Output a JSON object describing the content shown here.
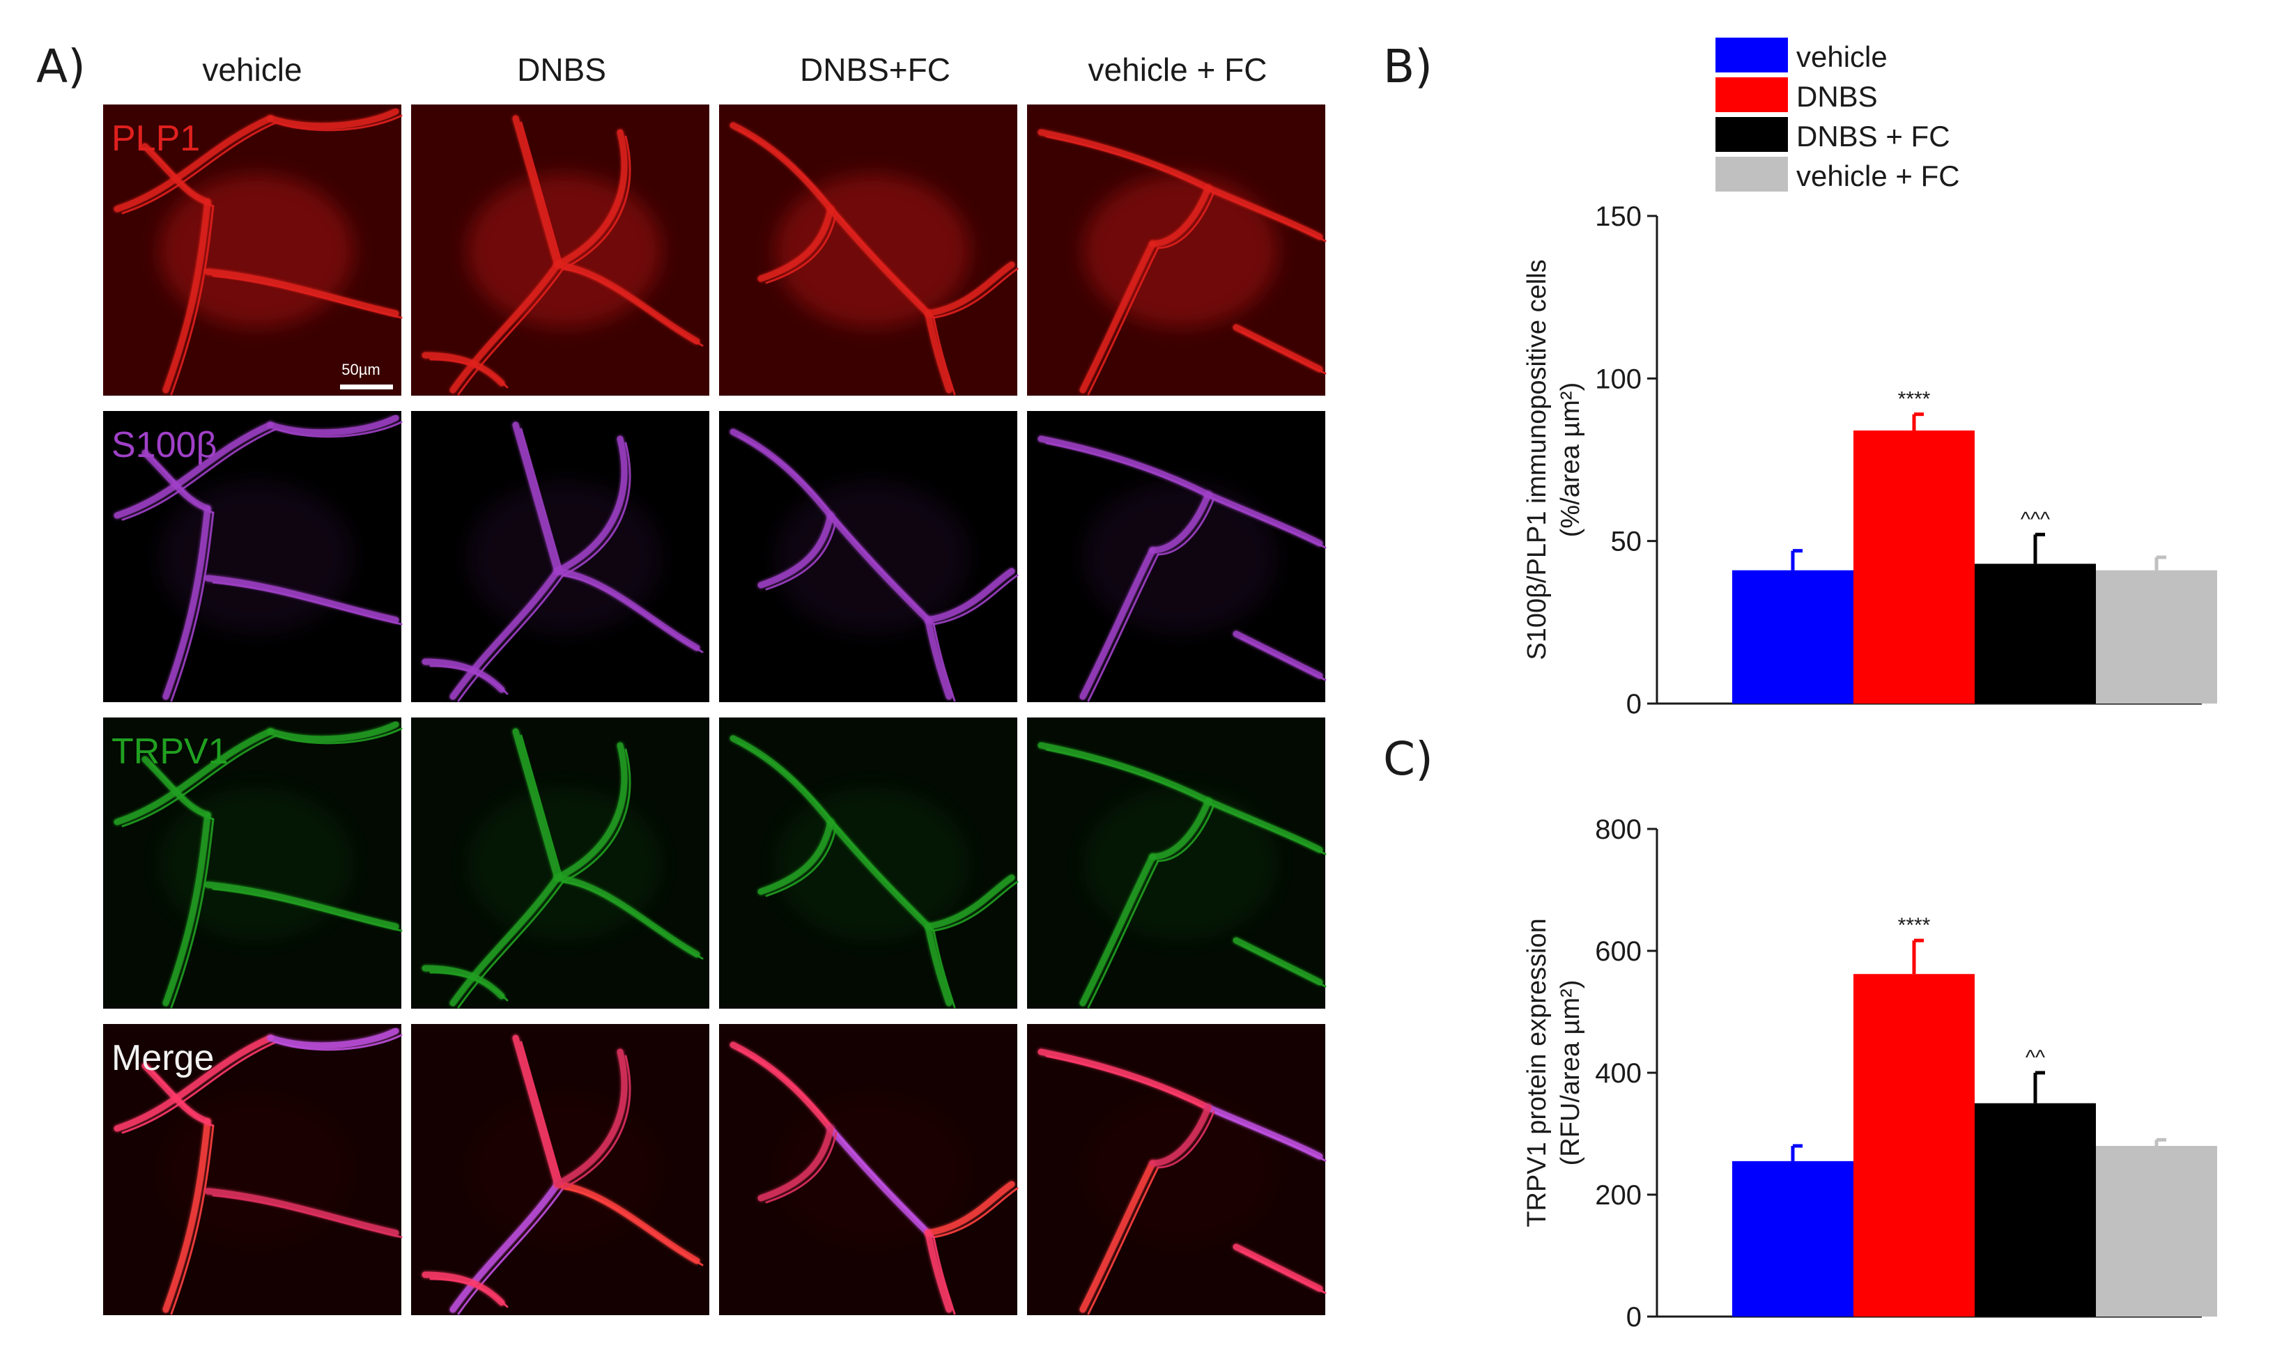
{
  "panel_A": {
    "letter": "A)",
    "columns": [
      "vehicle",
      "DNBS",
      "DNBS+FC",
      "vehicle + FC"
    ],
    "rows": [
      {
        "label": "PLP1",
        "color": "#e0201e",
        "bg": "#3a0000"
      },
      {
        "label": "S100β",
        "color": "#a040c8",
        "bg": "#000000"
      },
      {
        "label": "TRPV1",
        "color": "#20a020",
        "bg": "#020a02"
      },
      {
        "label": "Merge",
        "color": "#f2f2f2",
        "bg": "#140000"
      }
    ],
    "scale_bar": "50µm"
  },
  "legend": {
    "items": [
      {
        "label": "vehicle",
        "color": "#0000ff"
      },
      {
        "label": "DNBS",
        "color": "#ff0000"
      },
      {
        "label": "DNBS + FC",
        "color": "#000000"
      },
      {
        "label": "vehicle + FC",
        "color": "#c0c0c0"
      }
    ]
  },
  "chart_data": [
    {
      "type": "bar",
      "panel": "B)",
      "categories": [
        "vehicle",
        "DNBS",
        "DNBS + FC",
        "vehicle + FC"
      ],
      "values": [
        41,
        84,
        43,
        41
      ],
      "errors": [
        6,
        5,
        9,
        4
      ],
      "colors": [
        "#0000ff",
        "#ff0000",
        "#000000",
        "#c0c0c0"
      ],
      "annotations": [
        "",
        "****",
        "^^^",
        ""
      ],
      "ylabel_line1": "S100β/PLP1 immunopositive cells",
      "ylabel_line2": "(%/area µm²)",
      "ylim": [
        0,
        150
      ],
      "yticks": [
        0,
        50,
        100,
        150
      ],
      "grid": false
    },
    {
      "type": "bar",
      "panel": "C)",
      "categories": [
        "vehicle",
        "DNBS",
        "DNBS + FC",
        "vehicle + FC"
      ],
      "values": [
        255,
        562,
        350,
        280
      ],
      "errors": [
        25,
        55,
        50,
        10
      ],
      "colors": [
        "#0000ff",
        "#ff0000",
        "#000000",
        "#c0c0c0"
      ],
      "annotations": [
        "",
        "****",
        "^^",
        ""
      ],
      "ylabel_line1": "TRPV1 protein expression",
      "ylabel_line2": "(RFU/area µm²)",
      "ylim": [
        0,
        800
      ],
      "yticks": [
        0,
        200,
        400,
        600,
        800
      ],
      "grid": false
    }
  ]
}
